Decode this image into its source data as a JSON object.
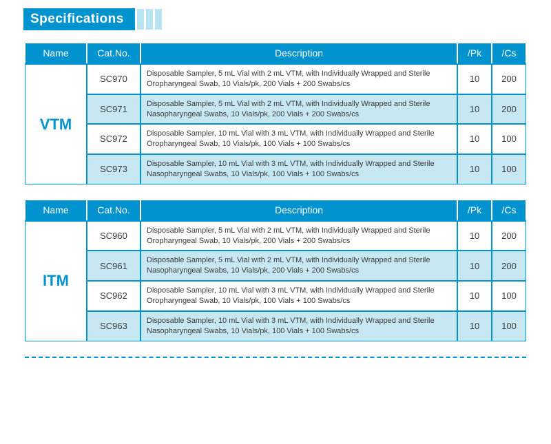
{
  "title": "Specifications",
  "colors": {
    "header_bg": "#0093d0",
    "header_fg": "#ffffff",
    "alt_row_bg": "#c7e7f2",
    "row_bg": "#ffffff",
    "border": "#0093d0",
    "name_fg": "#0093d0",
    "stripe_bg": "#b9e4f4",
    "dash": "#0093d0"
  },
  "columns": [
    "Name",
    "Cat.No.",
    "Description",
    "/Pk",
    "/Cs"
  ],
  "tables": [
    {
      "name": "VTM",
      "rows": [
        {
          "cat": "SC970",
          "desc": "Disposable Sampler, 5 mL Vial with 2 mL VTM, with Individually Wrapped and Sterile Oropharyngeal Swab, 10 Vials/pk, 200 Vials + 200 Swabs/cs",
          "pk": "10",
          "cs": "200"
        },
        {
          "cat": "SC971",
          "desc": "Disposable Sampler, 5 mL Vial with 2 mL VTM, with Individually Wrapped and Sterile Nasopharyngeal Swabs, 10 Vials/pk, 200 Vials + 200 Swabs/cs",
          "pk": "10",
          "cs": "200"
        },
        {
          "cat": "SC972",
          "desc": "Disposable Sampler, 10 mL Vial with 3 mL VTM, with Individually Wrapped and Sterile Oropharyngeal Swab, 10 Vials/pk, 100 Vials + 100 Swabs/cs",
          "pk": "10",
          "cs": "100"
        },
        {
          "cat": "SC973",
          "desc": "Disposable Sampler, 10 mL Vial with 3 mL VTM, with Individually Wrapped and Sterile Nasopharyngeal Swabs, 10 Vials/pk, 100 Vials + 100 Swabs/cs",
          "pk": "10",
          "cs": "100"
        }
      ]
    },
    {
      "name": "ITM",
      "rows": [
        {
          "cat": "SC960",
          "desc": "Disposable Sampler, 5 mL Vial with 2 mL VTM, with Individually Wrapped and Sterile Oropharyngeal Swab, 10 Vials/pk, 200 Vials + 200 Swabs/cs",
          "pk": "10",
          "cs": "200"
        },
        {
          "cat": "SC961",
          "desc": "Disposable Sampler, 5 mL Vial with 2 mL VTM, with Individually Wrapped and Sterile Nasopharyngeal Swabs, 10 Vials/pk, 200 Vials + 200 Swabs/cs",
          "pk": "10",
          "cs": "200"
        },
        {
          "cat": "SC962",
          "desc": "Disposable Sampler, 10 mL Vial with 3 mL VTM, with Individually Wrapped and Sterile Oropharyngeal Swab, 10 Vials/pk, 100 Vials + 100 Swabs/cs",
          "pk": "10",
          "cs": "100"
        },
        {
          "cat": "SC963",
          "desc": "Disposable Sampler, 10 mL Vial with 3 mL VTM, with Individually Wrapped and Sterile Nasopharyngeal Swabs, 10 Vials/pk, 100 Vials + 100 Swabs/cs",
          "pk": "10",
          "cs": "100"
        }
      ]
    }
  ]
}
